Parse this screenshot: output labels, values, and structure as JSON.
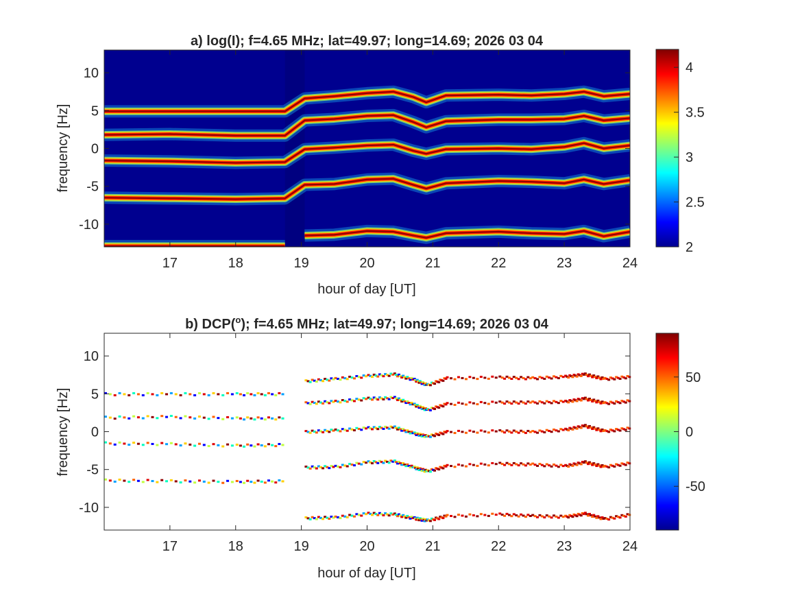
{
  "chart_data": [
    {
      "type": "heatmap",
      "title": "a) log(I); f=4.65 MHz;  lat=49.97; long=14.69; 2026 03 04",
      "xlabel": "hour of day [UT]",
      "ylabel": "frequency [Hz]",
      "xlim": [
        16,
        24
      ],
      "ylim": [
        -13,
        13
      ],
      "xticks": [
        17,
        18,
        19,
        20,
        21,
        22,
        23,
        24
      ],
      "yticks": [
        10,
        5,
        0,
        -5,
        -10
      ],
      "colorbar": {
        "range": [
          2,
          4.2
        ],
        "ticks": [
          "4",
          "3.5",
          "3",
          "2.5",
          "2"
        ],
        "tick_values": [
          4,
          3.5,
          3,
          2.5,
          2
        ],
        "colormap": "jet"
      },
      "background_color": "#00008f",
      "data_gap": [
        18.75,
        19.05
      ],
      "bands": [
        {
          "name": "band-1",
          "points": [
            [
              16,
              4.9
            ],
            [
              17,
              4.9
            ],
            [
              18,
              4.9
            ],
            [
              18.75,
              4.9
            ],
            [
              19.05,
              6.6
            ],
            [
              19.5,
              6.9
            ],
            [
              20,
              7.3
            ],
            [
              20.4,
              7.5
            ],
            [
              20.7,
              6.8
            ],
            [
              20.9,
              6.1
            ],
            [
              21.2,
              7.0
            ],
            [
              22,
              7.1
            ],
            [
              22.5,
              7.0
            ],
            [
              23,
              7.2
            ],
            [
              23.3,
              7.5
            ],
            [
              23.6,
              6.9
            ],
            [
              24,
              7.2
            ]
          ]
        },
        {
          "name": "band-2",
          "points": [
            [
              16,
              1.8
            ],
            [
              17,
              1.9
            ],
            [
              18,
              1.7
            ],
            [
              18.75,
              1.7
            ],
            [
              19.05,
              3.7
            ],
            [
              19.5,
              3.9
            ],
            [
              20,
              4.3
            ],
            [
              20.4,
              4.4
            ],
            [
              20.7,
              3.5
            ],
            [
              20.9,
              2.8
            ],
            [
              21.2,
              3.6
            ],
            [
              22,
              3.8
            ],
            [
              22.5,
              3.8
            ],
            [
              23,
              3.9
            ],
            [
              23.3,
              4.3
            ],
            [
              23.6,
              3.7
            ],
            [
              24,
              4.0
            ]
          ]
        },
        {
          "name": "band-3",
          "points": [
            [
              16,
              -1.6
            ],
            [
              17,
              -1.7
            ],
            [
              18,
              -1.9
            ],
            [
              18.75,
              -1.8
            ],
            [
              19.05,
              -0.1
            ],
            [
              19.5,
              0.1
            ],
            [
              20,
              0.4
            ],
            [
              20.4,
              0.5
            ],
            [
              20.7,
              -0.3
            ],
            [
              20.9,
              -0.7
            ],
            [
              21.2,
              -0.1
            ],
            [
              22,
              0.0
            ],
            [
              22.5,
              -0.1
            ],
            [
              23,
              0.2
            ],
            [
              23.3,
              0.7
            ],
            [
              23.6,
              0.0
            ],
            [
              24,
              0.4
            ]
          ]
        },
        {
          "name": "band-4",
          "points": [
            [
              16,
              -6.5
            ],
            [
              17,
              -6.6
            ],
            [
              18,
              -6.7
            ],
            [
              18.75,
              -6.6
            ],
            [
              19.05,
              -4.8
            ],
            [
              19.5,
              -4.7
            ],
            [
              20,
              -4.1
            ],
            [
              20.4,
              -4.0
            ],
            [
              20.7,
              -4.8
            ],
            [
              20.9,
              -5.3
            ],
            [
              21.2,
              -4.6
            ],
            [
              22,
              -4.3
            ],
            [
              22.5,
              -4.4
            ],
            [
              23,
              -4.6
            ],
            [
              23.3,
              -4.1
            ],
            [
              23.6,
              -4.7
            ],
            [
              24,
              -4.2
            ]
          ]
        },
        {
          "name": "band-5",
          "points": [
            [
              19.05,
              -11.5
            ],
            [
              19.5,
              -11.4
            ],
            [
              20,
              -10.9
            ],
            [
              20.4,
              -11.0
            ],
            [
              20.7,
              -11.5
            ],
            [
              20.9,
              -11.8
            ],
            [
              21.2,
              -11.2
            ],
            [
              22,
              -11.0
            ],
            [
              22.5,
              -11.2
            ],
            [
              23,
              -11.3
            ],
            [
              23.3,
              -10.9
            ],
            [
              23.6,
              -11.6
            ],
            [
              24,
              -11.0
            ]
          ]
        },
        {
          "name": "band-6",
          "points": [
            [
              16,
              -12.9
            ],
            [
              18.75,
              -12.9
            ]
          ]
        }
      ]
    },
    {
      "type": "scatter",
      "title": "b) DCP(",
      "title_superscript": "o",
      "title_suffix": "); f=4.65 MHz;  lat=49.97; long=14.69; 2026 03 04",
      "xlabel": "hour of day [UT]",
      "ylabel": "frequency [Hz]",
      "xlim": [
        16,
        24
      ],
      "ylim": [
        -13,
        13
      ],
      "xticks": [
        17,
        18,
        19,
        20,
        21,
        22,
        23,
        24
      ],
      "yticks": [
        10,
        5,
        0,
        -5,
        -10
      ],
      "colorbar": {
        "range": [
          -90,
          90
        ],
        "ticks": [
          "50",
          "0",
          "-50"
        ],
        "tick_values": [
          50,
          0,
          -50
        ],
        "colormap": "jet"
      },
      "note": "same band traces as panel a, colored by DCP (red predominantly after 21 UT, mixed before)"
    }
  ]
}
